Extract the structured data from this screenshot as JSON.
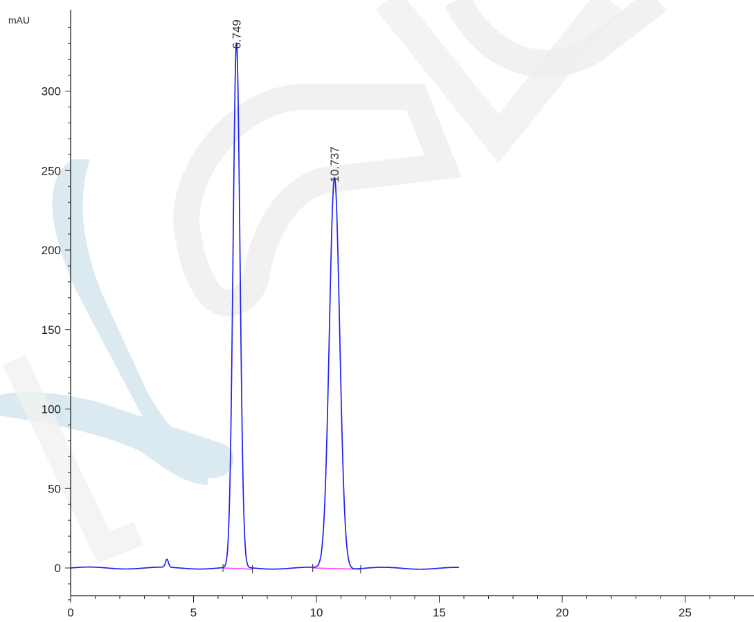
{
  "chart_data": {
    "type": "line",
    "title": "",
    "xlabel": "",
    "ylabel": "mAU",
    "xlim": [
      0,
      28
    ],
    "ylim": [
      -20,
      345
    ],
    "grid": false,
    "x_ticks": [
      0,
      5,
      10,
      15,
      20,
      25
    ],
    "y_ticks": [
      0,
      50,
      100,
      150,
      200,
      250,
      300
    ],
    "series": [
      {
        "color": "#2020ee",
        "peaks": [
          {
            "rt": 3.92,
            "height": 5,
            "sigma": 0.06
          },
          {
            "rt": 6.749,
            "height": 330,
            "sigma": 0.14
          },
          {
            "rt": 10.737,
            "height": 246,
            "sigma": 0.21
          }
        ],
        "x_range": [
          0,
          15.8
        ]
      }
    ],
    "peak_labels": [
      {
        "rt": 6.749,
        "label": "6.749",
        "height": 330
      },
      {
        "rt": 10.737,
        "label": "10.737",
        "height": 246
      }
    ],
    "integration_baselines": [
      {
        "start": 6.2,
        "end": 7.4,
        "color": "#ff40ff"
      },
      {
        "start": 9.85,
        "end": 11.8,
        "color": "#ff40ff"
      }
    ]
  }
}
